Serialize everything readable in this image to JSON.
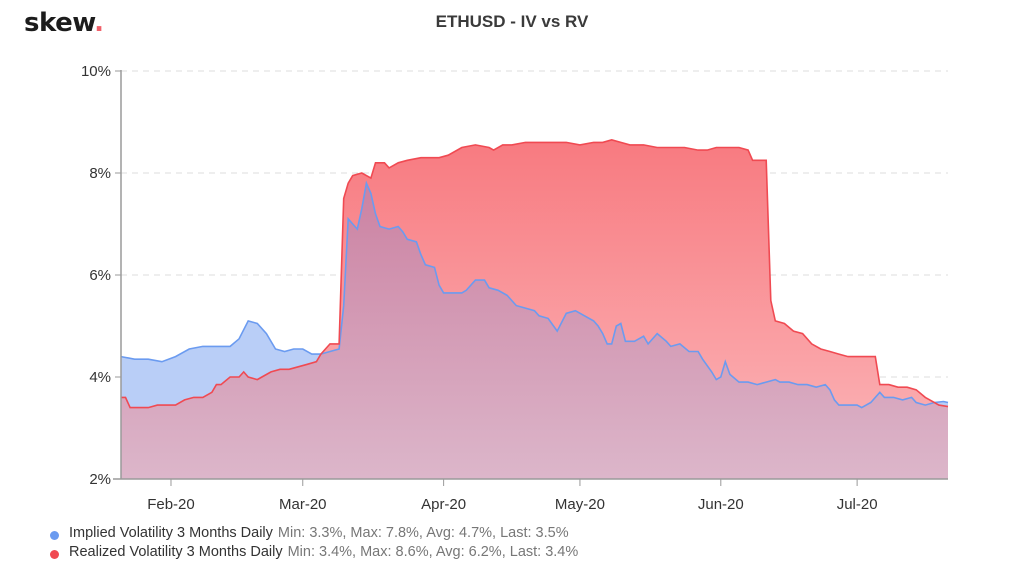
{
  "header": {
    "logo_text": "skew",
    "logo_dot": ".",
    "title": "ETHUSD - IV vs RV"
  },
  "colors": {
    "iv_line": "#6b9bf0",
    "iv_fill": "#b9cef7",
    "rv_line": "#f04a52",
    "rv_fill_top": "#f87a80",
    "rv_fill_bottom": "#fbb8bb",
    "overlap_fill": "#d49ab4",
    "axis": "#9a9a9a",
    "grid": "#dddddd",
    "logo_dot": "#f0606a"
  },
  "legend": [
    {
      "name": "Implied Volatility 3 Months Daily",
      "stats": "Min: 3.3%, Max: 7.8%, Avg: 4.7%, Last: 3.5%",
      "color": "#6b9bf0"
    },
    {
      "name": "Realized Volatility 3 Months Daily",
      "stats": "Min: 3.4%, Max: 8.6%, Avg: 6.2%, Last: 3.4%",
      "color": "#f04a52"
    }
  ],
  "chart_data": {
    "type": "area",
    "title": "ETHUSD - IV vs RV",
    "xlabel": "",
    "ylabel": "",
    "ylim": [
      2,
      10
    ],
    "yticks": [
      "2%",
      "4%",
      "6%",
      "8%",
      "10%"
    ],
    "ytick_values": [
      2,
      4,
      6,
      8,
      10
    ],
    "xticks": [
      "Feb-20",
      "Mar-20",
      "Apr-20",
      "May-20",
      "Jun-20",
      "Jul-20"
    ],
    "xtick_day_index": [
      11,
      40,
      71,
      101,
      132,
      162
    ],
    "x_start": "2020-01-21",
    "x_end": "2020-07-22",
    "grid": "horizontal dashed",
    "legend_position": "bottom-left",
    "series": [
      {
        "name": "Implied Volatility 3 Months Daily",
        "min": 3.3,
        "max": 7.8,
        "avg": 4.7,
        "last": 3.5,
        "points": [
          [
            0,
            4.4
          ],
          [
            3,
            4.35
          ],
          [
            6,
            4.35
          ],
          [
            9,
            4.3
          ],
          [
            12,
            4.4
          ],
          [
            15,
            4.55
          ],
          [
            18,
            4.6
          ],
          [
            21,
            4.6
          ],
          [
            24,
            4.6
          ],
          [
            26,
            4.75
          ],
          [
            28,
            5.1
          ],
          [
            30,
            5.05
          ],
          [
            32,
            4.85
          ],
          [
            34,
            4.55
          ],
          [
            36,
            4.5
          ],
          [
            38,
            4.55
          ],
          [
            40,
            4.55
          ],
          [
            42,
            4.45
          ],
          [
            44,
            4.45
          ],
          [
            46,
            4.5
          ],
          [
            48,
            4.55
          ],
          [
            49,
            5.4
          ],
          [
            50,
            7.1
          ],
          [
            51,
            7.0
          ],
          [
            52,
            6.9
          ],
          [
            53,
            7.3
          ],
          [
            54,
            7.8
          ],
          [
            55,
            7.6
          ],
          [
            56,
            7.2
          ],
          [
            57,
            6.95
          ],
          [
            59,
            6.9
          ],
          [
            61,
            6.95
          ],
          [
            62,
            6.85
          ],
          [
            63,
            6.7
          ],
          [
            65,
            6.65
          ],
          [
            66,
            6.4
          ],
          [
            67,
            6.2
          ],
          [
            69,
            6.15
          ],
          [
            70,
            5.8
          ],
          [
            71,
            5.65
          ],
          [
            73,
            5.65
          ],
          [
            75,
            5.65
          ],
          [
            76,
            5.7
          ],
          [
            78,
            5.9
          ],
          [
            80,
            5.9
          ],
          [
            81,
            5.75
          ],
          [
            83,
            5.7
          ],
          [
            85,
            5.6
          ],
          [
            87,
            5.4
          ],
          [
            89,
            5.35
          ],
          [
            91,
            5.3
          ],
          [
            92,
            5.2
          ],
          [
            94,
            5.15
          ],
          [
            96,
            4.9
          ],
          [
            98,
            5.25
          ],
          [
            100,
            5.3
          ],
          [
            102,
            5.2
          ],
          [
            104,
            5.1
          ],
          [
            105,
            5.0
          ],
          [
            106,
            4.85
          ],
          [
            107,
            4.65
          ],
          [
            108,
            4.65
          ],
          [
            109,
            5.0
          ],
          [
            110,
            5.05
          ],
          [
            111,
            4.7
          ],
          [
            113,
            4.7
          ],
          [
            115,
            4.8
          ],
          [
            116,
            4.65
          ],
          [
            118,
            4.85
          ],
          [
            120,
            4.7
          ],
          [
            121,
            4.6
          ],
          [
            123,
            4.65
          ],
          [
            125,
            4.5
          ],
          [
            127,
            4.5
          ],
          [
            128,
            4.35
          ],
          [
            130,
            4.1
          ],
          [
            131,
            3.95
          ],
          [
            132,
            4.0
          ],
          [
            133,
            4.3
          ],
          [
            134,
            4.05
          ],
          [
            136,
            3.9
          ],
          [
            138,
            3.9
          ],
          [
            140,
            3.85
          ],
          [
            142,
            3.9
          ],
          [
            144,
            3.95
          ],
          [
            145,
            3.9
          ],
          [
            147,
            3.9
          ],
          [
            149,
            3.85
          ],
          [
            151,
            3.85
          ],
          [
            153,
            3.8
          ],
          [
            155,
            3.85
          ],
          [
            156,
            3.75
          ],
          [
            157,
            3.55
          ],
          [
            158,
            3.45
          ],
          [
            160,
            3.45
          ],
          [
            162,
            3.45
          ],
          [
            163,
            3.4
          ],
          [
            165,
            3.5
          ],
          [
            167,
            3.7
          ],
          [
            168,
            3.6
          ],
          [
            170,
            3.6
          ],
          [
            172,
            3.55
          ],
          [
            174,
            3.6
          ],
          [
            175,
            3.5
          ],
          [
            177,
            3.45
          ],
          [
            179,
            3.5
          ],
          [
            181,
            3.52
          ],
          [
            182,
            3.5
          ]
        ]
      },
      {
        "name": "Realized Volatility 3 Months Daily",
        "min": 3.4,
        "max": 8.6,
        "avg": 6.2,
        "last": 3.4,
        "points": [
          [
            0,
            3.6
          ],
          [
            1,
            3.6
          ],
          [
            2,
            3.4
          ],
          [
            4,
            3.4
          ],
          [
            6,
            3.4
          ],
          [
            8,
            3.45
          ],
          [
            10,
            3.45
          ],
          [
            12,
            3.45
          ],
          [
            14,
            3.55
          ],
          [
            16,
            3.6
          ],
          [
            18,
            3.6
          ],
          [
            20,
            3.7
          ],
          [
            21,
            3.85
          ],
          [
            22,
            3.85
          ],
          [
            24,
            4.0
          ],
          [
            26,
            4.0
          ],
          [
            27,
            4.1
          ],
          [
            28,
            4.0
          ],
          [
            30,
            3.95
          ],
          [
            31,
            4.0
          ],
          [
            33,
            4.1
          ],
          [
            35,
            4.15
          ],
          [
            37,
            4.15
          ],
          [
            39,
            4.2
          ],
          [
            41,
            4.25
          ],
          [
            43,
            4.3
          ],
          [
            44,
            4.45
          ],
          [
            46,
            4.65
          ],
          [
            47,
            4.65
          ],
          [
            48,
            4.65
          ],
          [
            49,
            7.5
          ],
          [
            50,
            7.8
          ],
          [
            51,
            7.95
          ],
          [
            53,
            8.0
          ],
          [
            55,
            7.9
          ],
          [
            56,
            8.2
          ],
          [
            58,
            8.2
          ],
          [
            59,
            8.1
          ],
          [
            61,
            8.2
          ],
          [
            63,
            8.25
          ],
          [
            66,
            8.3
          ],
          [
            70,
            8.3
          ],
          [
            72,
            8.35
          ],
          [
            75,
            8.5
          ],
          [
            78,
            8.55
          ],
          [
            81,
            8.5
          ],
          [
            82,
            8.45
          ],
          [
            84,
            8.55
          ],
          [
            86,
            8.55
          ],
          [
            89,
            8.6
          ],
          [
            92,
            8.6
          ],
          [
            95,
            8.6
          ],
          [
            98,
            8.6
          ],
          [
            101,
            8.55
          ],
          [
            104,
            8.6
          ],
          [
            106,
            8.6
          ],
          [
            108,
            8.65
          ],
          [
            110,
            8.6
          ],
          [
            112,
            8.55
          ],
          [
            115,
            8.55
          ],
          [
            118,
            8.5
          ],
          [
            121,
            8.5
          ],
          [
            124,
            8.5
          ],
          [
            127,
            8.45
          ],
          [
            129,
            8.45
          ],
          [
            131,
            8.5
          ],
          [
            134,
            8.5
          ],
          [
            136,
            8.5
          ],
          [
            138,
            8.45
          ],
          [
            139,
            8.25
          ],
          [
            141,
            8.25
          ],
          [
            142,
            8.25
          ],
          [
            143,
            5.5
          ],
          [
            144,
            5.1
          ],
          [
            146,
            5.05
          ],
          [
            148,
            4.9
          ],
          [
            150,
            4.85
          ],
          [
            152,
            4.65
          ],
          [
            154,
            4.55
          ],
          [
            156,
            4.5
          ],
          [
            158,
            4.45
          ],
          [
            160,
            4.4
          ],
          [
            162,
            4.4
          ],
          [
            164,
            4.4
          ],
          [
            166,
            4.4
          ],
          [
            167,
            3.85
          ],
          [
            169,
            3.85
          ],
          [
            171,
            3.8
          ],
          [
            173,
            3.8
          ],
          [
            175,
            3.75
          ],
          [
            177,
            3.6
          ],
          [
            178,
            3.55
          ],
          [
            180,
            3.45
          ],
          [
            182,
            3.42
          ]
        ]
      }
    ]
  }
}
